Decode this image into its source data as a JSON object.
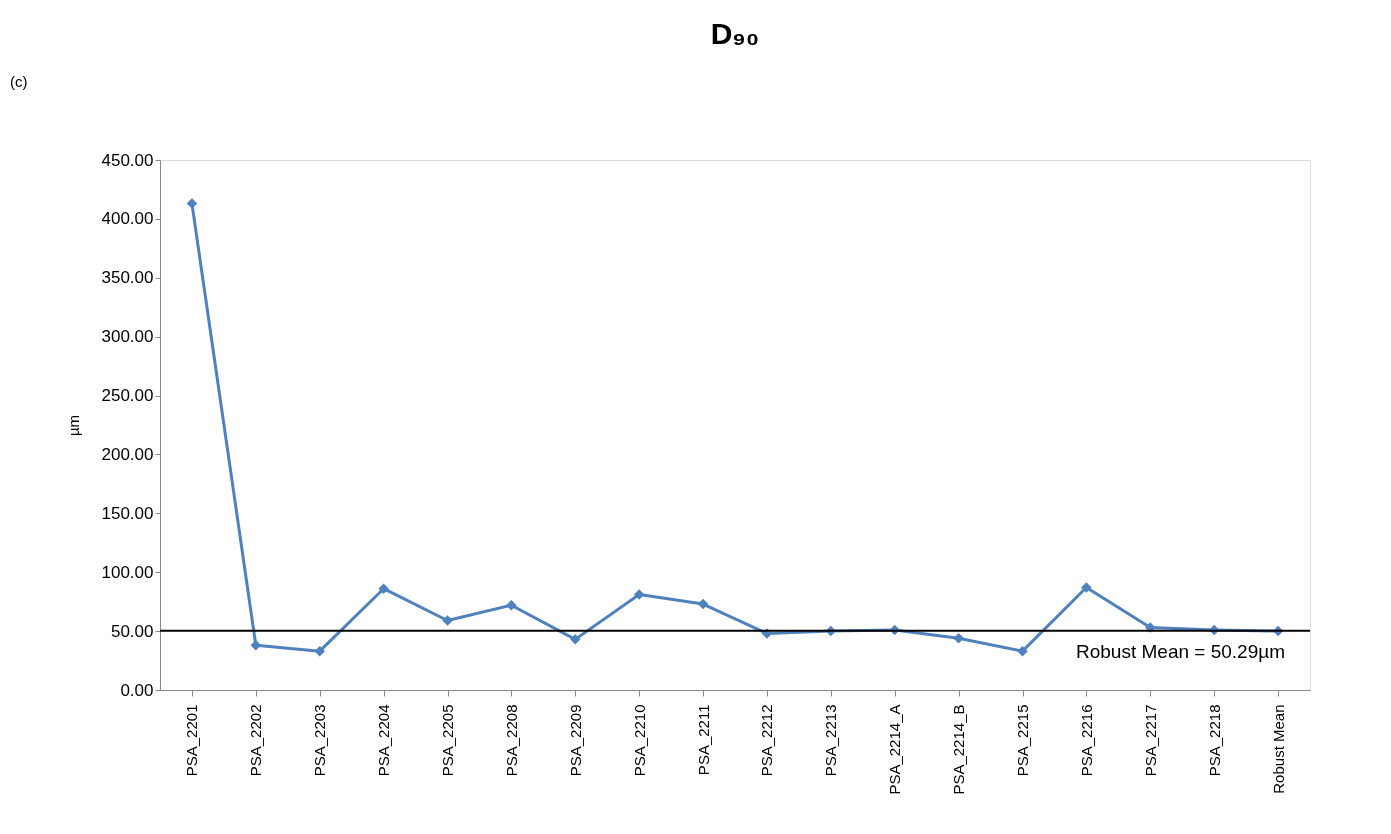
{
  "chart_data": {
    "type": "line",
    "title": "D₉₀",
    "ylabel": "µm",
    "categories": [
      "PSA_2201",
      "PSA_2202",
      "PSA_2203",
      "PSA_2204",
      "PSA_2205",
      "PSA_2208",
      "PSA_2209",
      "PSA_2210",
      "PSA_2211",
      "PSA_2212",
      "PSA_2213",
      "PSA_2214_A",
      "PSA_2214_B",
      "PSA_2215",
      "PSA_2216",
      "PSA_2217",
      "PSA_2218",
      "Robust Mean"
    ],
    "series": [
      {
        "color": "#4f81bd",
        "values": [
          413,
          38,
          33,
          86,
          59,
          72,
          43,
          81,
          73,
          48,
          50,
          51,
          44,
          33,
          87,
          53,
          51,
          50
        ]
      }
    ],
    "ylim": [
      0,
      450
    ],
    "yticks": [
      {
        "value": 0,
        "label": "0.00"
      },
      {
        "value": 50,
        "label": "50.00"
      },
      {
        "value": 100,
        "label": "100.00"
      },
      {
        "value": 150,
        "label": "150.00"
      },
      {
        "value": 200,
        "label": "200.00"
      },
      {
        "value": 250,
        "label": "250.00"
      },
      {
        "value": 300,
        "label": "300.00"
      },
      {
        "value": 350,
        "label": "350.00"
      },
      {
        "value": 400,
        "label": "400.00"
      },
      {
        "value": 450,
        "label": "450.00"
      }
    ],
    "ref_lines": [
      {
        "axis": "y",
        "value": 50.29,
        "label": "Robust Mean = 50.29µm",
        "color": "#000000"
      }
    ],
    "annotations": [
      "(c)"
    ],
    "marker": "diamond",
    "line_style": "solid",
    "grid": false
  }
}
